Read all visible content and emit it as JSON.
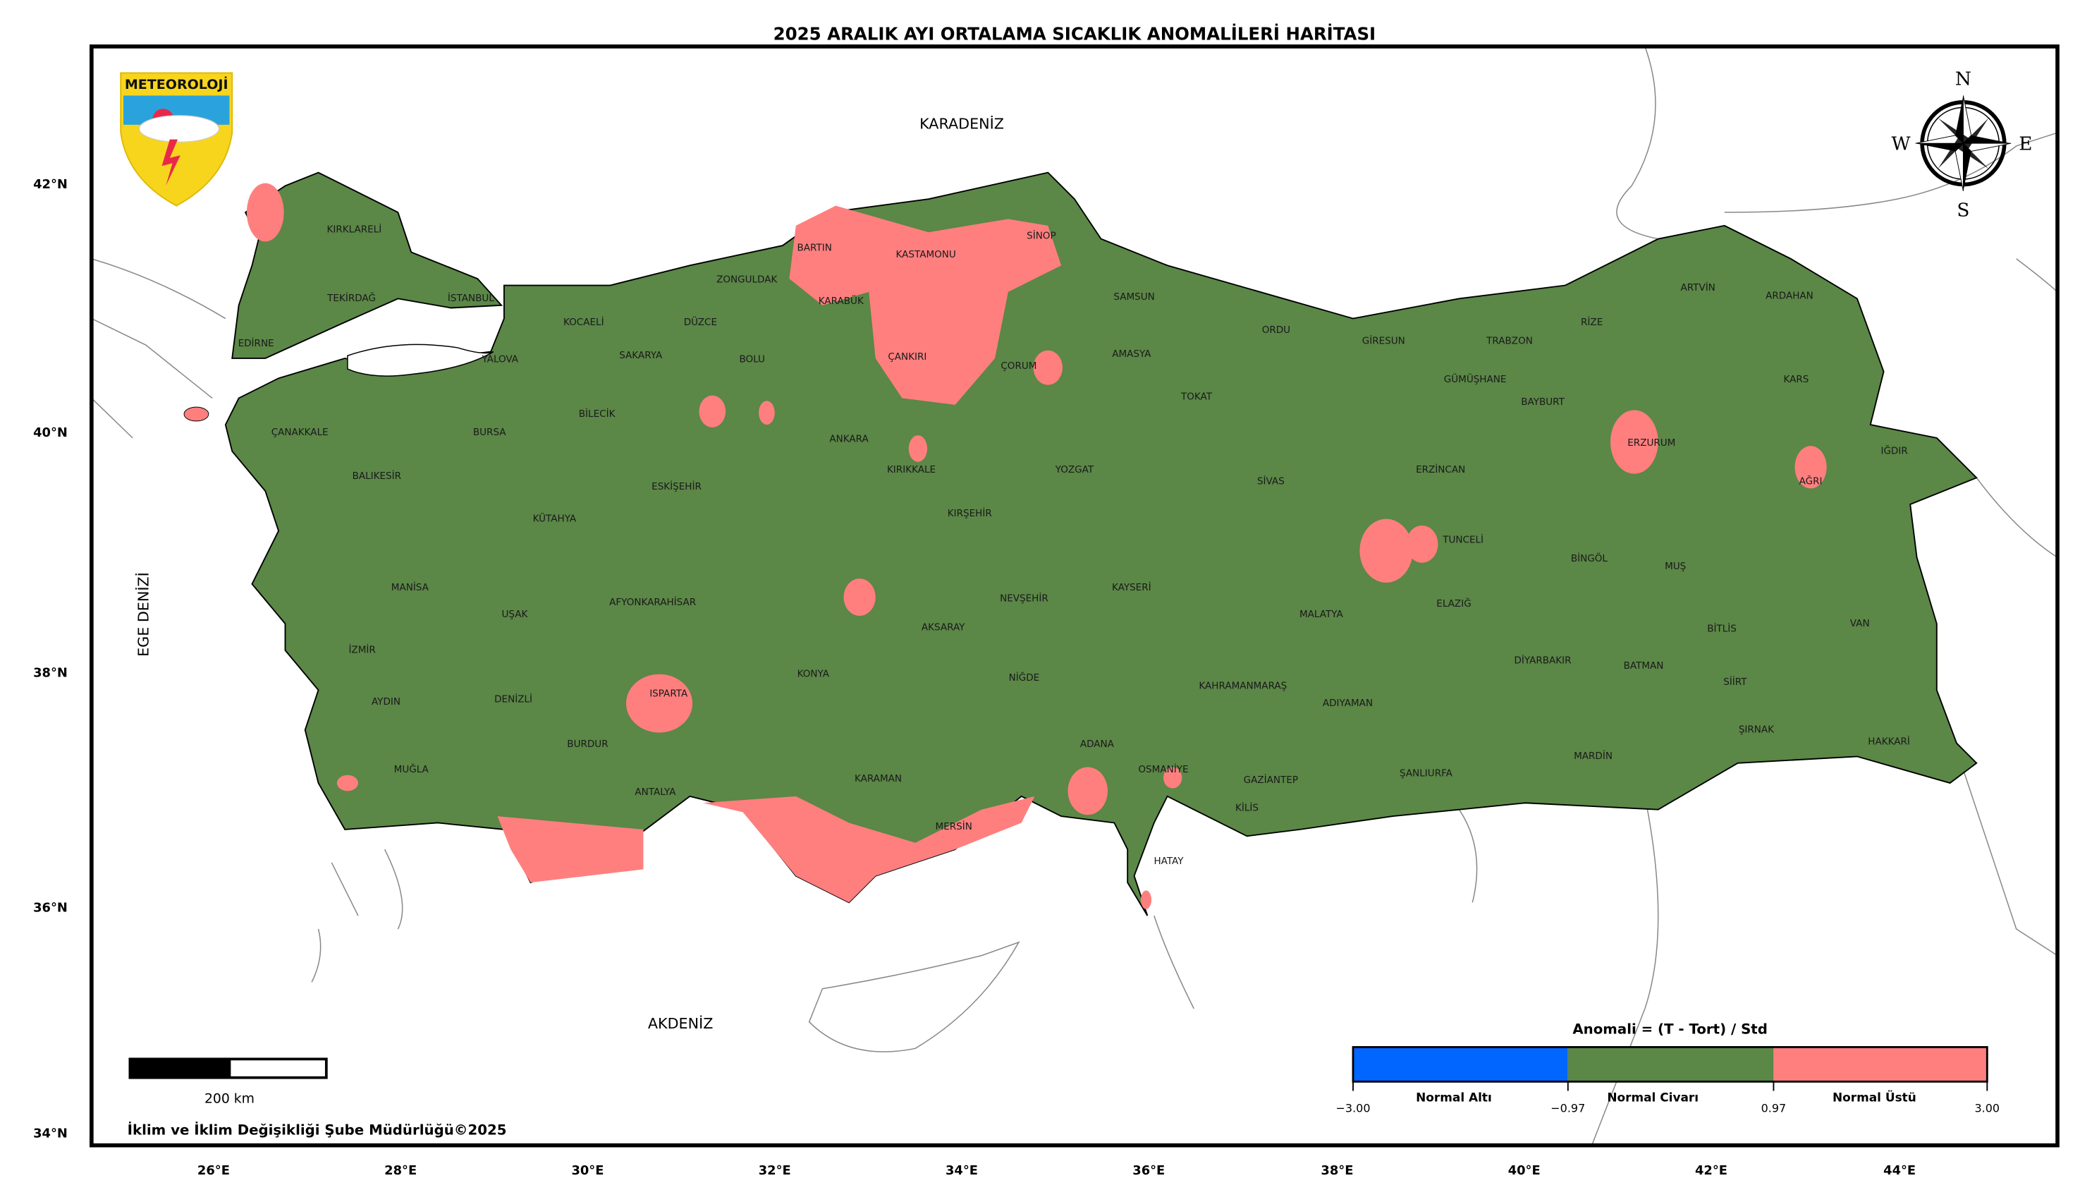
{
  "title": "2025 ARALIK AYI ORTALAMA SICAKLIK ANOMALİLERİ HARİTASI",
  "seas": {
    "black_sea": "KARADENİZ",
    "mediterranean": "AKDENİZ",
    "aegean": "EGE DENİZİ"
  },
  "axes": {
    "lon_ticks": [
      "26°E",
      "28°E",
      "30°E",
      "32°E",
      "34°E",
      "36°E",
      "38°E",
      "40°E",
      "42°E",
      "44°E"
    ],
    "lat_ticks": [
      "42°N",
      "40°N",
      "38°N",
      "36°N",
      "34°N"
    ]
  },
  "logo": {
    "text": "METEOROLOJİ"
  },
  "compass": {
    "n": "N",
    "s": "S",
    "e": "E",
    "w": "W"
  },
  "scale_bar": {
    "label": "200 km"
  },
  "credit": "İklim ve İklim Değişikliği Şube Müdürlüğü©2025",
  "legend": {
    "title": "Anomali = (T - Tort) / Std",
    "categories": [
      {
        "label": "Normal Altı",
        "color": "#0066ff"
      },
      {
        "label": "Normal Civarı",
        "color": "#5b8747"
      },
      {
        "label": "Normal Üstü",
        "color": "#ff7f7f"
      }
    ],
    "ticks": [
      "−3.00",
      "−0.97",
      "0.97",
      "3.00"
    ]
  },
  "colors": {
    "land_normal": "#5b8747",
    "above_normal": "#ff7f7f",
    "below_normal": "#0066ff"
  },
  "provinces": [
    "KIRKLARELİ",
    "TEKİRDAĞ",
    "EDİRNE",
    "İSTANBUL",
    "KOCAELİ",
    "DÜZCE",
    "ZONGULDAK",
    "BARTIN",
    "KARABÜK",
    "KASTAMONU",
    "SİNOP",
    "SAMSUN",
    "YALOVA",
    "SAKARYA",
    "BOLU",
    "ÇANKIRI",
    "ÇORUM",
    "AMASYA",
    "TOKAT",
    "ORDU",
    "GİRESUN",
    "TRABZON",
    "RİZE",
    "ARTVİN",
    "ARDAHAN",
    "GÜMÜŞHANE",
    "BAYBURT",
    "KARS",
    "ERZURUM",
    "IĞDIR",
    "AĞRI",
    "ÇANAKKALE",
    "BURSA",
    "BİLECİK",
    "BALIKESİR",
    "ESKİŞEHİR",
    "ANKARA",
    "KIRIKKALE",
    "YOZGAT",
    "SİVAS",
    "ERZİNCAN",
    "KÜTAHYA",
    "KIRŞEHİR",
    "TUNCELİ",
    "BİNGÖL",
    "MUŞ",
    "MANİSA",
    "UŞAK",
    "AFYONKARAHİSAR",
    "NEVŞEHİR",
    "KAYSERİ",
    "MALATYA",
    "ELAZIĞ",
    "BİTLİS",
    "VAN",
    "İZMİR",
    "AKSARAY",
    "DİYARBAKIR",
    "BATMAN",
    "SİİRT",
    "AYDIN",
    "DENİZLİ",
    "ISPARTA",
    "KONYA",
    "NİĞDE",
    "KAHRAMANMARAŞ",
    "ADIYAMAN",
    "ŞIRNAK",
    "HAKKARİ",
    "BURDUR",
    "ADANA",
    "OSMANİYE",
    "GAZİANTEP",
    "ŞANLIURFA",
    "MARDİN",
    "MUĞLA",
    "ANTALYA",
    "KARAMAN",
    "KİLİS",
    "MERSİN",
    "HATAY"
  ]
}
